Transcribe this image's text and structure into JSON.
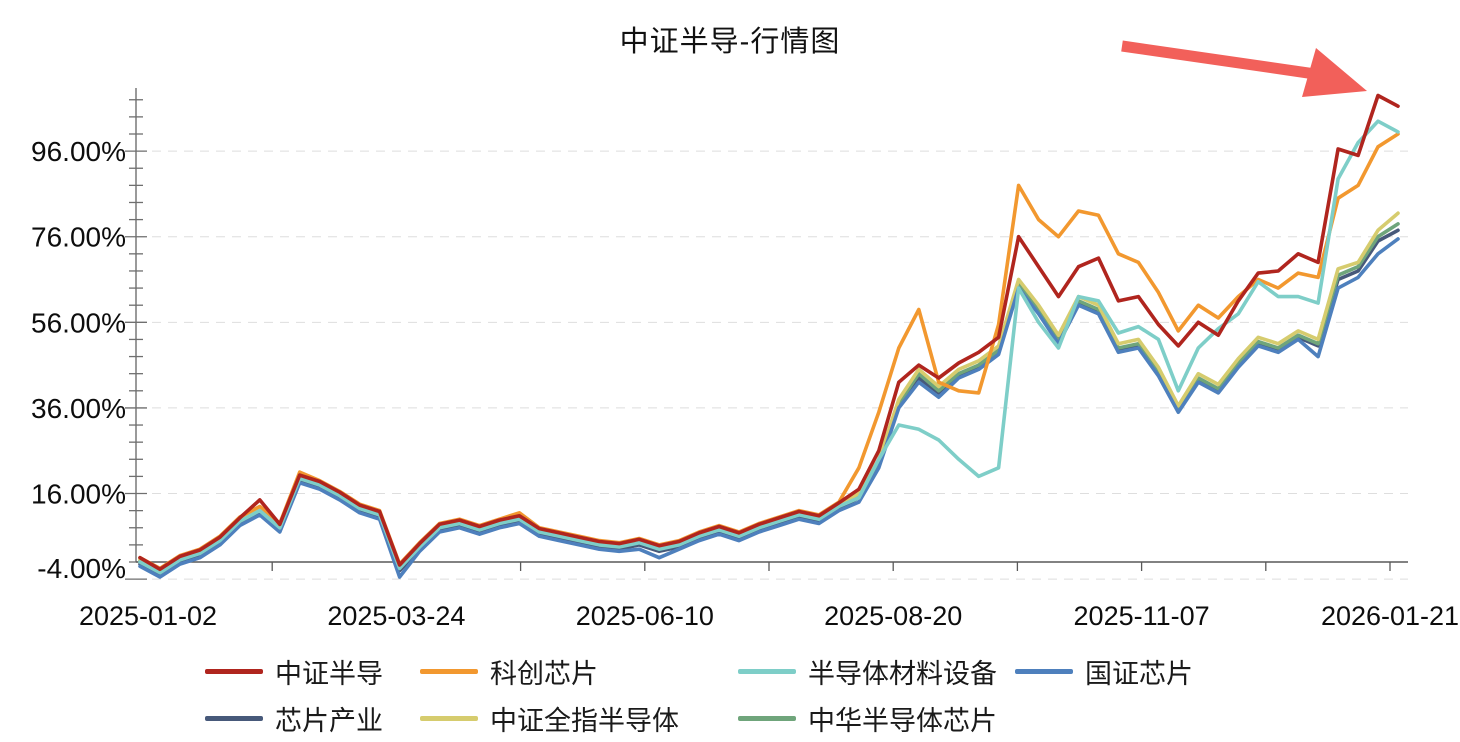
{
  "title": "中证半导-行情图",
  "chart_data": {
    "type": "line",
    "title": "中证半导-行情图",
    "unit": "percent_return",
    "grid": "horizontal-dashed",
    "legend_position": "bottom",
    "x_axis": {
      "kind": "trading-dates",
      "tick_labels": [
        "2025-01-02",
        "2025-03-24",
        "2025-06-10",
        "2025-08-20",
        "2025-11-07",
        "2026-01-21"
      ],
      "range": [
        "2025-01-02",
        "2026-01-21"
      ]
    },
    "y_axis": {
      "tick_labels": [
        "-4.00%",
        "16.00%",
        "36.00%",
        "56.00%",
        "76.00%",
        "96.00%"
      ],
      "tick_values": [
        -4,
        16,
        36,
        56,
        76,
        96
      ],
      "minor_tick_step": 4,
      "min": -4,
      "max": 110
    },
    "sampling_note": "values in % cumulative return, 64 points evenly spaced from 2025-01-02 to 2026-01-21, read from plot",
    "series": [
      {
        "name": "中证半导",
        "color": "#b0251e",
        "values": [
          1,
          -1.7,
          1.3,
          2.8,
          5.8,
          10.3,
          14.5,
          8.8,
          20.3,
          18.8,
          16.3,
          13.3,
          11.8,
          -0.7,
          4.3,
          8.8,
          9.8,
          8.3,
          9.8,
          10.8,
          7.8,
          6.8,
          5.8,
          4.8,
          4.3,
          5.3,
          3.8,
          4.8,
          6.8,
          8.3,
          6.8,
          8.8,
          10.3,
          11.8,
          10.8,
          13.8,
          17,
          26,
          42,
          46,
          43,
          46.5,
          49,
          52.5,
          76,
          69,
          62,
          69,
          71,
          61,
          62,
          55.5,
          50.5,
          56,
          53,
          61,
          67.5,
          68,
          72,
          70,
          96.5,
          95,
          109,
          106.5
        ]
      },
      {
        "name": "科创芯片",
        "color": "#f2982f",
        "values": [
          1,
          -1.5,
          1.5,
          3,
          6,
          10.5,
          13,
          9,
          21,
          19,
          16.5,
          13.5,
          12,
          -0.5,
          4.5,
          9,
          10,
          8.5,
          10,
          11.5,
          8,
          7,
          6,
          5,
          4.5,
          5.5,
          4,
          5,
          7,
          8.5,
          7,
          9,
          10.5,
          12,
          11,
          14,
          22,
          35,
          50,
          59,
          42,
          40,
          39.5,
          55.5,
          88,
          80,
          76,
          82,
          81,
          72,
          70,
          63,
          54,
          60,
          57,
          62,
          66,
          64,
          67.5,
          66.5,
          85,
          88,
          97,
          100
        ]
      },
      {
        "name": "半导体材料设备",
        "color": "#7ecec8",
        "values": [
          0,
          -2.5,
          0.5,
          2,
          5,
          9.5,
          12,
          8,
          19.5,
          18,
          15.5,
          12.5,
          11,
          -1.5,
          3.5,
          8,
          9,
          7.5,
          9,
          10,
          7,
          6,
          5,
          4,
          3.5,
          4.5,
          3,
          4,
          6,
          7.5,
          6,
          8,
          9.5,
          11,
          10,
          13,
          15,
          24,
          32,
          31,
          28.5,
          24,
          20,
          22,
          64,
          56,
          50,
          62,
          61,
          53.5,
          55,
          52,
          40,
          50,
          54.5,
          58,
          65.5,
          62,
          62,
          60.5,
          89.5,
          98,
          103,
          100.5
        ]
      },
      {
        "name": "国证芯片",
        "color": "#4e80bd",
        "values": [
          -1,
          -3.5,
          -0.5,
          1,
          4,
          8.5,
          11,
          7,
          18.5,
          17,
          14.5,
          11.5,
          10,
          -3.5,
          2.5,
          7,
          8,
          6.5,
          8,
          9,
          6,
          5,
          4,
          3,
          2.5,
          3,
          1,
          3,
          5,
          6.5,
          5,
          7,
          8.5,
          10,
          9,
          12,
          14,
          22,
          36,
          42,
          38.5,
          43,
          45,
          48.5,
          64,
          58,
          51,
          60,
          58,
          49,
          50,
          43.5,
          35,
          42,
          39.5,
          45.5,
          50.5,
          49,
          52,
          48,
          64,
          66.5,
          72,
          75.5
        ]
      },
      {
        "name": "芯片产业",
        "color": "#47597a",
        "values": [
          -0.5,
          -3,
          0,
          1.5,
          4.5,
          9,
          11.5,
          7.5,
          19,
          17.5,
          15,
          12,
          10.5,
          -2,
          3,
          7.5,
          8.5,
          7,
          8.5,
          9.5,
          6.5,
          5.5,
          4.5,
          3.5,
          3,
          4,
          2.5,
          3.5,
          5.5,
          7,
          5.5,
          7.5,
          9,
          10.5,
          9.5,
          12.5,
          15,
          22.5,
          36.5,
          43,
          39.5,
          43.5,
          45.5,
          49,
          64.5,
          58.5,
          51.5,
          60.5,
          58.5,
          49.5,
          50.5,
          44,
          35.5,
          42.5,
          40,
          46,
          51,
          49.5,
          52.5,
          50.5,
          66,
          68,
          75,
          77.5
        ]
      },
      {
        "name": "中证全指半导体",
        "color": "#d6cc6e",
        "values": [
          0.5,
          -2,
          1,
          2.5,
          5.5,
          10,
          12.5,
          8.5,
          20,
          18.5,
          16,
          13,
          11.5,
          -1,
          4,
          8.5,
          9.5,
          8,
          9.5,
          10.5,
          7.5,
          6.5,
          5.5,
          4.5,
          4,
          5,
          3.5,
          4.5,
          6.5,
          8,
          6.5,
          8.5,
          10,
          11.5,
          10.5,
          13.5,
          16,
          24,
          38,
          45,
          41,
          45,
          47,
          50.5,
          66,
          60,
          53,
          62,
          60,
          51,
          52,
          45.5,
          36.5,
          44,
          41.5,
          47.5,
          52.5,
          51,
          54,
          52,
          68.5,
          70,
          77.5,
          81.5
        ]
      },
      {
        "name": "中华半导体芯片",
        "color": "#6fa57b",
        "values": [
          0.3,
          -2.2,
          0.8,
          2.3,
          5.3,
          9.8,
          12.3,
          8.3,
          19.8,
          18.3,
          15.8,
          12.8,
          11.3,
          -1.2,
          3.8,
          8.3,
          9.3,
          7.8,
          9.3,
          10.3,
          7.3,
          6.3,
          5.3,
          4.3,
          3.8,
          4.8,
          3.3,
          4.3,
          6.3,
          7.8,
          6.3,
          8.3,
          9.8,
          11.3,
          10.3,
          13.3,
          15.5,
          23,
          37,
          44,
          40,
          44,
          46,
          49.5,
          65,
          59,
          52,
          61,
          59,
          50,
          51,
          44.5,
          36,
          43,
          40.5,
          46.5,
          51.5,
          50,
          53,
          51,
          67,
          69,
          76,
          79
        ]
      }
    ],
    "annotations": [
      {
        "kind": "arrow",
        "color": "#f2605a",
        "points_at": "peak of 中证半导 near 2026-01-21",
        "direction": "upper-left to lower-right"
      }
    ]
  }
}
